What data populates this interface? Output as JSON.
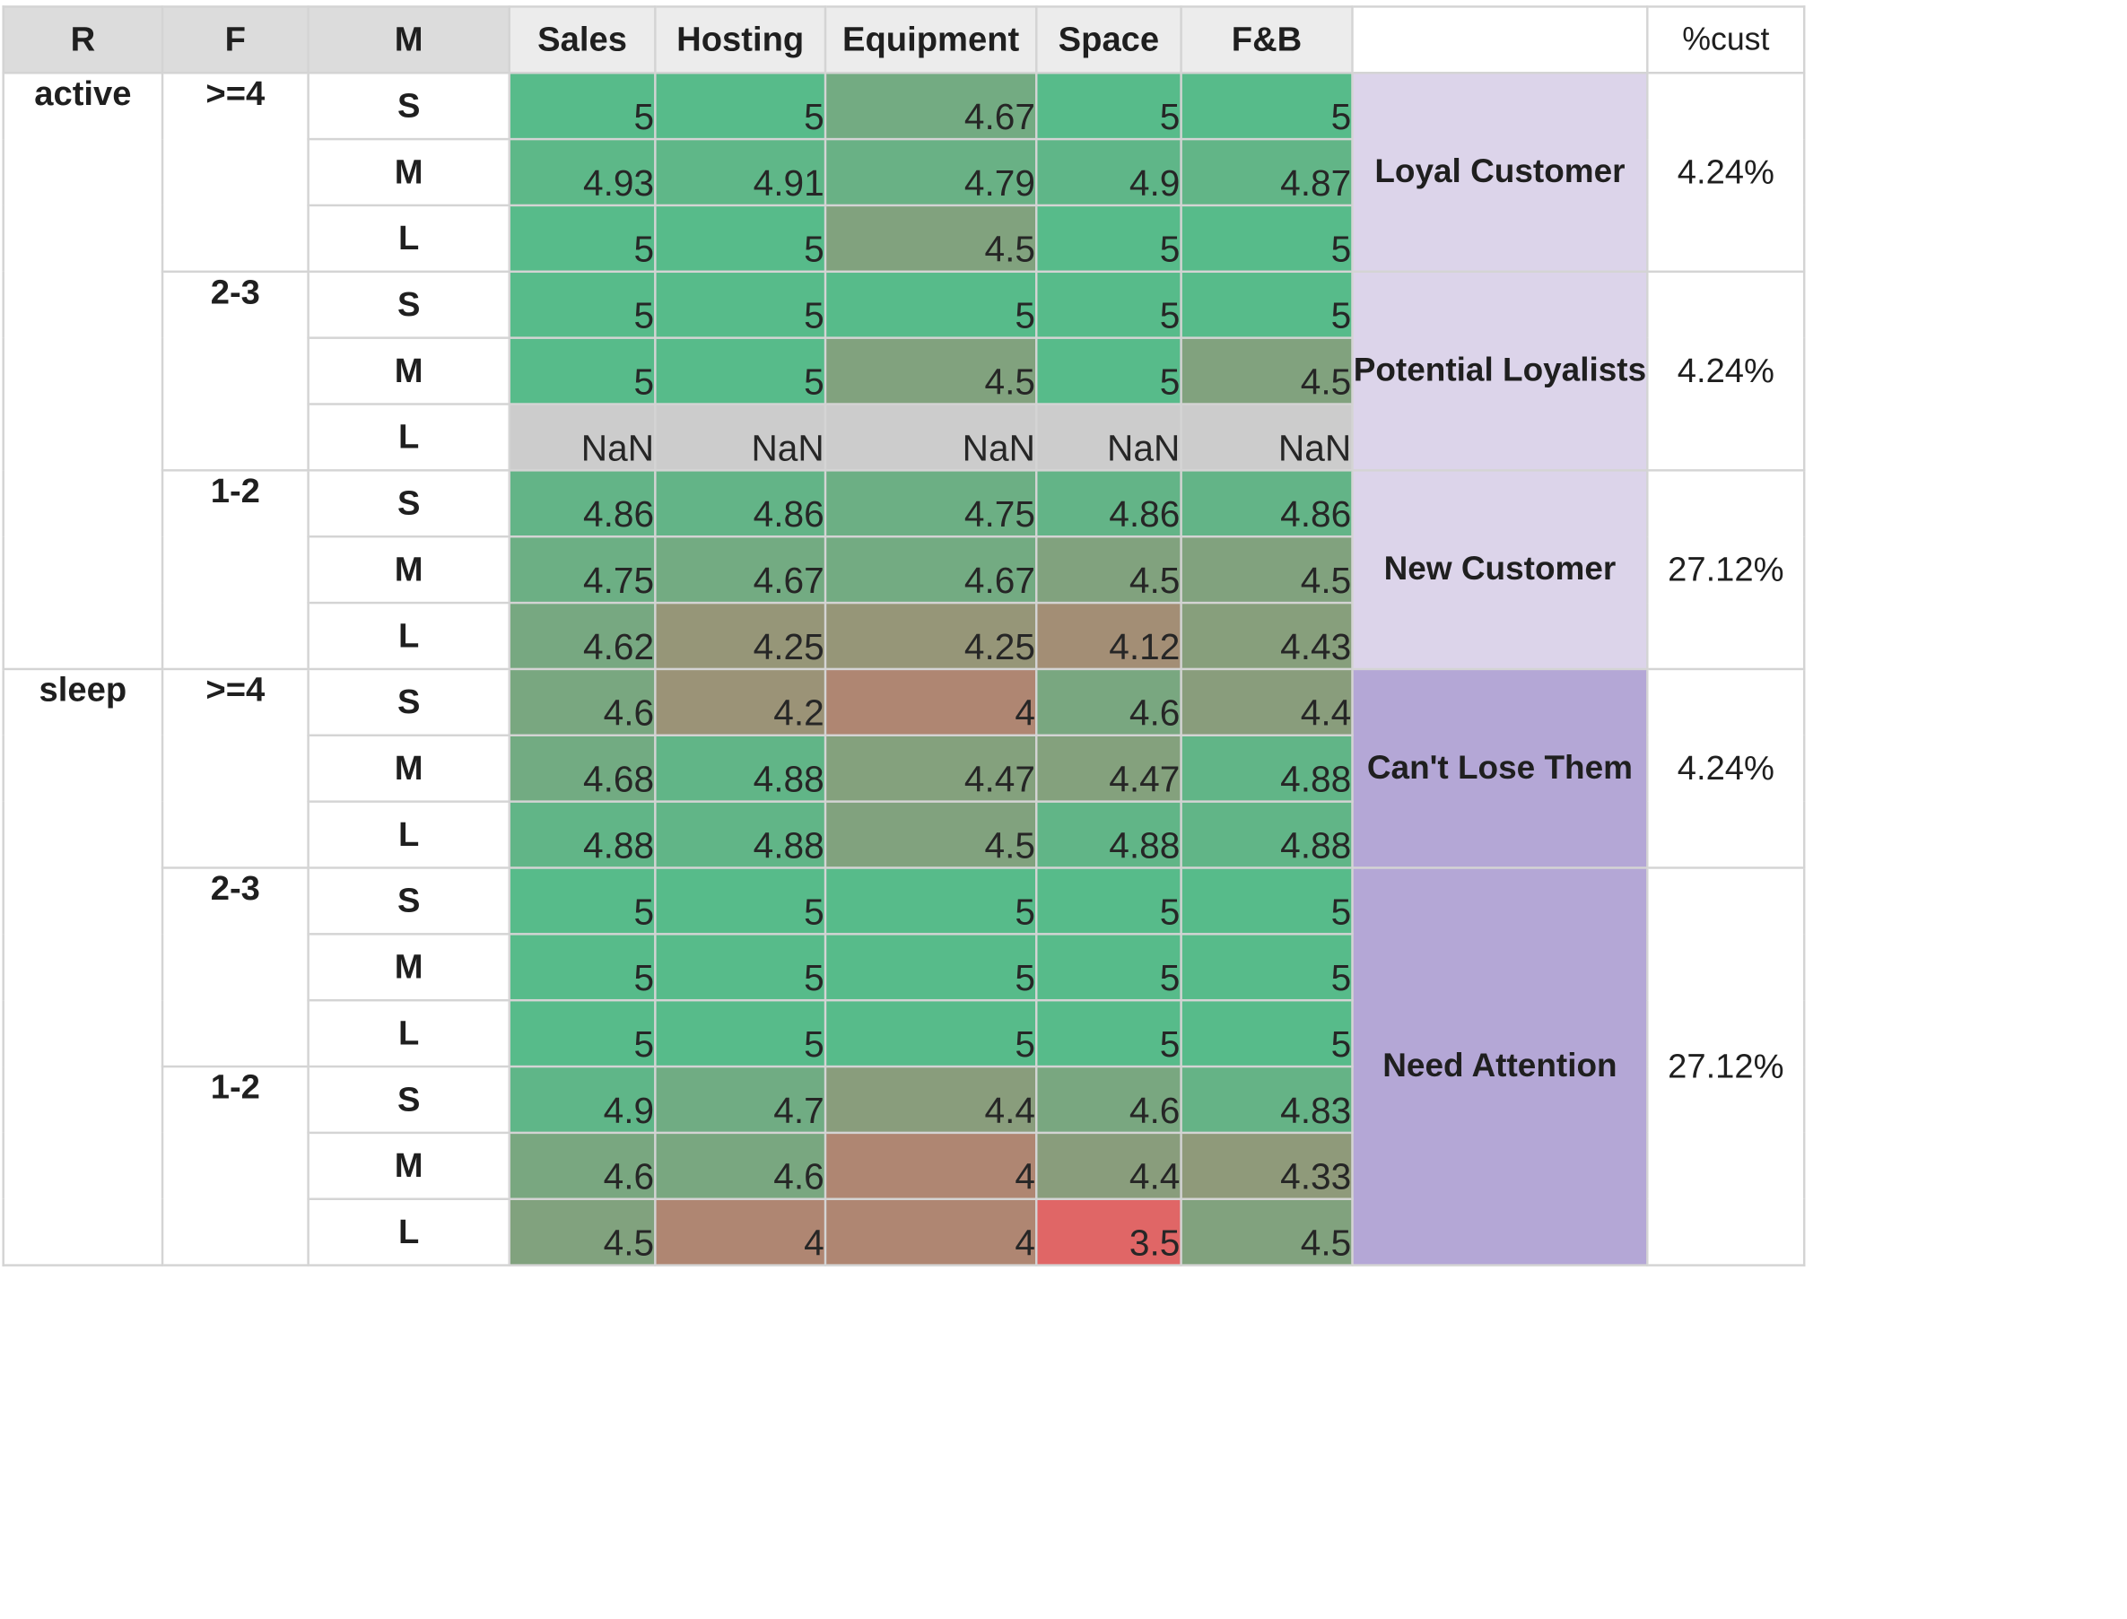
{
  "chart_data": {
    "type": "table",
    "columns": [
      "R",
      "F",
      "M",
      "Sales",
      "Hosting",
      "Equipment",
      "Space",
      "F&B",
      "",
      "%cust"
    ],
    "metrics": [
      "Sales",
      "Hosting",
      "Equipment",
      "Space",
      "F&B"
    ],
    "recency_groups": [
      {
        "r": "active",
        "frequency_groups": [
          {
            "f": ">=4",
            "rows": [
              {
                "m": "S",
                "values": [
                  "5",
                  "5",
                  "4.67",
                  "5",
                  "5"
                ]
              },
              {
                "m": "M",
                "values": [
                  "4.93",
                  "4.91",
                  "4.79",
                  "4.9",
                  "4.87"
                ]
              },
              {
                "m": "L",
                "values": [
                  "5",
                  "5",
                  "4.5",
                  "5",
                  "5"
                ]
              }
            ]
          },
          {
            "f": "2-3",
            "rows": [
              {
                "m": "S",
                "values": [
                  "5",
                  "5",
                  "5",
                  "5",
                  "5"
                ]
              },
              {
                "m": "M",
                "values": [
                  "5",
                  "5",
                  "4.5",
                  "5",
                  "4.5"
                ]
              },
              {
                "m": "L",
                "values": [
                  "NaN",
                  "NaN",
                  "NaN",
                  "NaN",
                  "NaN"
                ]
              }
            ]
          },
          {
            "f": "1-2",
            "rows": [
              {
                "m": "S",
                "values": [
                  "4.86",
                  "4.86",
                  "4.75",
                  "4.86",
                  "4.86"
                ]
              },
              {
                "m": "M",
                "values": [
                  "4.75",
                  "4.67",
                  "4.67",
                  "4.5",
                  "4.5"
                ]
              },
              {
                "m": "L",
                "values": [
                  "4.62",
                  "4.25",
                  "4.25",
                  "4.12",
                  "4.43"
                ]
              }
            ]
          }
        ]
      },
      {
        "r": "sleep",
        "frequency_groups": [
          {
            "f": ">=4",
            "rows": [
              {
                "m": "S",
                "values": [
                  "4.6",
                  "4.2",
                  "4",
                  "4.6",
                  "4.4"
                ]
              },
              {
                "m": "M",
                "values": [
                  "4.68",
                  "4.88",
                  "4.47",
                  "4.47",
                  "4.88"
                ]
              },
              {
                "m": "L",
                "values": [
                  "4.88",
                  "4.88",
                  "4.5",
                  "4.88",
                  "4.88"
                ]
              }
            ]
          },
          {
            "f": "2-3",
            "rows": [
              {
                "m": "S",
                "values": [
                  "5",
                  "5",
                  "5",
                  "5",
                  "5"
                ]
              },
              {
                "m": "M",
                "values": [
                  "5",
                  "5",
                  "5",
                  "5",
                  "5"
                ]
              },
              {
                "m": "L",
                "values": [
                  "5",
                  "5",
                  "5",
                  "5",
                  "5"
                ]
              }
            ]
          },
          {
            "f": "1-2",
            "rows": [
              {
                "m": "S",
                "values": [
                  "4.9",
                  "4.7",
                  "4.4",
                  "4.6",
                  "4.83"
                ]
              },
              {
                "m": "M",
                "values": [
                  "4.6",
                  "4.6",
                  "4",
                  "4.4",
                  "4.33"
                ]
              },
              {
                "m": "L",
                "values": [
                  "4.5",
                  "4",
                  "4",
                  "3.5",
                  "4.5"
                ]
              }
            ]
          }
        ]
      }
    ],
    "segments": [
      {
        "label": "Loyal Customer",
        "pct": "4.24%",
        "row_span": 3,
        "color": "#dcd4ea"
      },
      {
        "label": "Potential Loyalists",
        "pct": "4.24%",
        "row_span": 3,
        "color": "#dcd4ea"
      },
      {
        "label": "New Customer",
        "pct": "27.12%",
        "row_span": 3,
        "color": "#dcd4ea"
      },
      {
        "label": "Can't Lose Them",
        "pct": "4.24%",
        "row_span": 3,
        "color": "#b4a7d6"
      },
      {
        "label": "Need Attention",
        "pct": "27.12%",
        "row_span": 6,
        "color": "#b4a7d6"
      }
    ],
    "color_scale": {
      "min": 3.5,
      "max": 5,
      "low": "#e06666",
      "high": "#57bb8a",
      "nan": "#cccccc"
    }
  }
}
